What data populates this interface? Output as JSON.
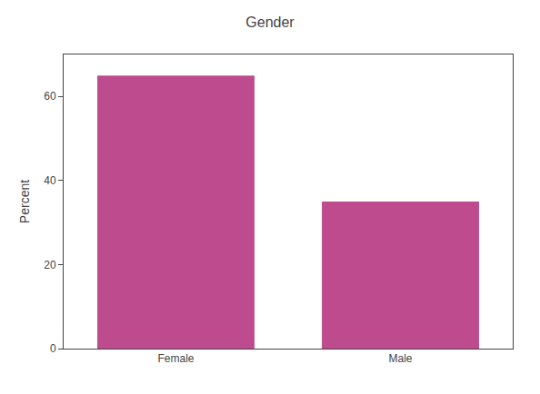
{
  "chart_data": {
    "type": "bar",
    "title": "Gender",
    "ylabel": "Percent",
    "categories": [
      "Female",
      "Male"
    ],
    "values": [
      65.0,
      35.0
    ],
    "color": "#be4b8e",
    "ylim": [
      0,
      70
    ],
    "yticks": [
      0,
      20,
      40,
      60
    ],
    "grid": false
  }
}
